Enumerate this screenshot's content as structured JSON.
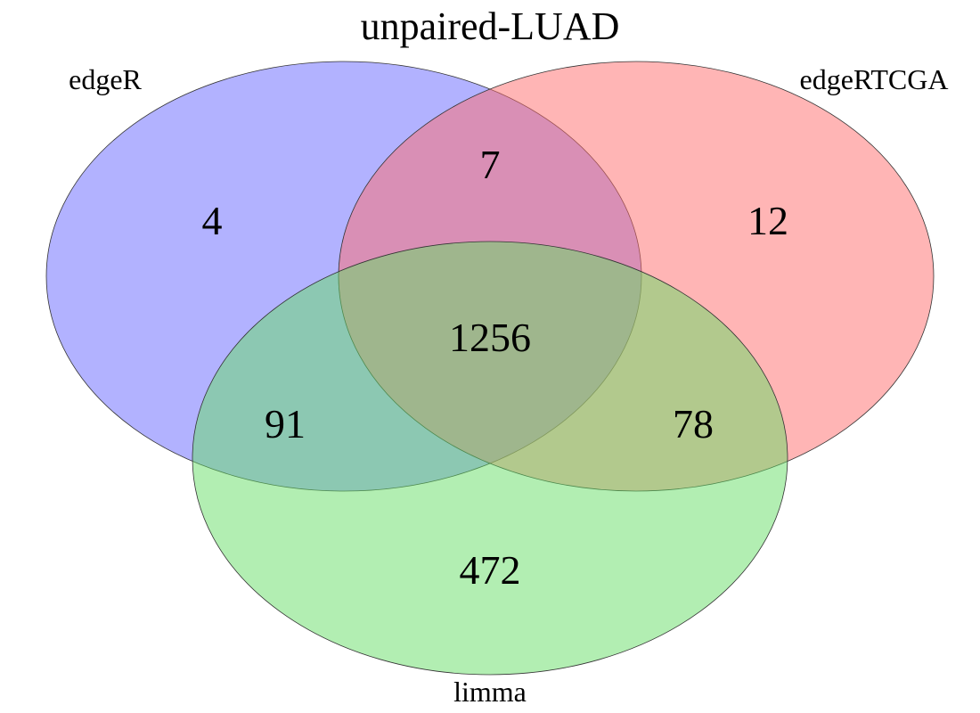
{
  "title": "unpaired-LUAD",
  "sets": [
    {
      "name": "edgeR",
      "color": "#6666ff",
      "opacity": 0.5
    },
    {
      "name": "edgeRTCGA",
      "color": "#ff6b6b",
      "opacity": 0.5
    },
    {
      "name": "limma",
      "color": "#66dd66",
      "opacity": 0.5
    }
  ],
  "regions": {
    "edgeR_only": "4",
    "edgeR_edgeRTCGA": "7",
    "edgeRTCGA_only": "12",
    "all_three": "1256",
    "edgeR_limma": "91",
    "edgeRTCGA_limma": "78",
    "limma_only": "472"
  },
  "chart_data": {
    "type": "venn",
    "title": "unpaired-LUAD",
    "sets": [
      "edgeR",
      "edgeRTCGA",
      "limma"
    ],
    "intersections": [
      {
        "sets": [
          "edgeR"
        ],
        "size": 4
      },
      {
        "sets": [
          "edgeRTCGA"
        ],
        "size": 12
      },
      {
        "sets": [
          "limma"
        ],
        "size": 472
      },
      {
        "sets": [
          "edgeR",
          "edgeRTCGA"
        ],
        "size": 7
      },
      {
        "sets": [
          "edgeR",
          "limma"
        ],
        "size": 91
      },
      {
        "sets": [
          "edgeRTCGA",
          "limma"
        ],
        "size": 78
      },
      {
        "sets": [
          "edgeR",
          "edgeRTCGA",
          "limma"
        ],
        "size": 1256
      }
    ]
  }
}
